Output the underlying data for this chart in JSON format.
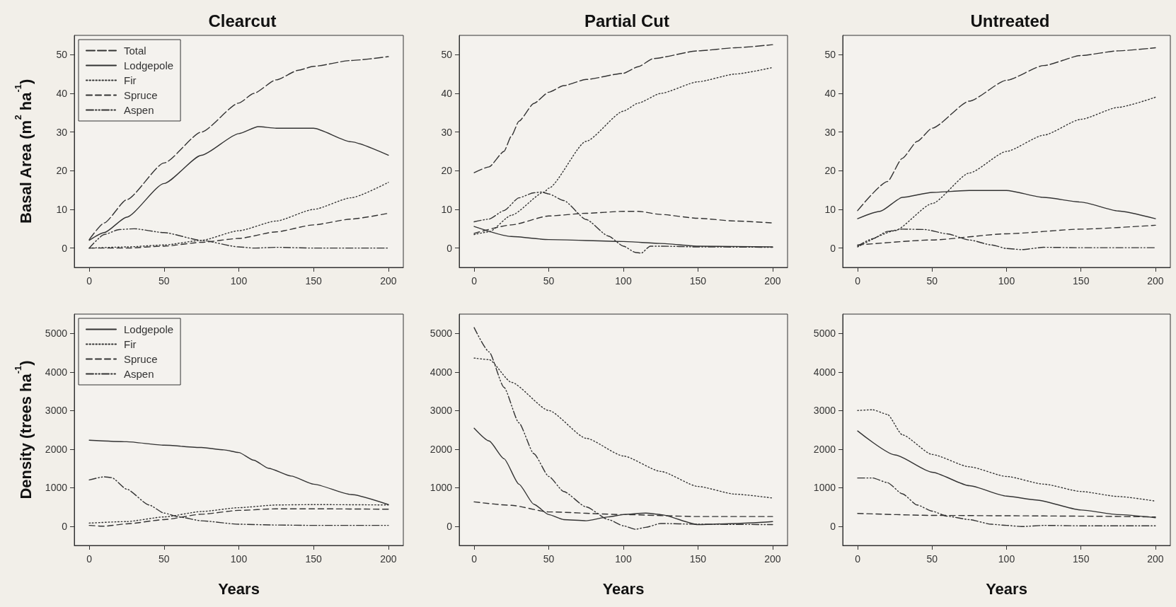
{
  "chart_data": [
    {
      "type": "line",
      "title": "Clearcut",
      "ylabel": "Basal Area (m$^{2}$ ha$^{-1}$)",
      "xlim": [
        -10,
        210
      ],
      "xticks": [
        0,
        50,
        100,
        150,
        200
      ],
      "ylim": [
        -5,
        55
      ],
      "yticks": [
        0,
        10,
        20,
        30,
        40,
        50
      ],
      "grid": false,
      "legend": "top left",
      "marker": "none",
      "series": [
        {
          "name": "Total",
          "color": "#333333",
          "line_style": "longdash",
          "x": [
            0,
            10,
            25,
            50,
            75,
            100,
            110,
            125,
            140,
            150,
            175,
            200
          ],
          "values": [
            2.2,
            6.5,
            12.5,
            22,
            30,
            37.5,
            40,
            43.5,
            46,
            47,
            48.5,
            49.5
          ]
        },
        {
          "name": "Lodgepole",
          "color": "#333333",
          "line_style": "solid",
          "x": [
            0,
            10,
            25,
            50,
            75,
            100,
            113,
            125,
            150,
            175,
            200
          ],
          "values": [
            2,
            4,
            8,
            16.7,
            24,
            29.6,
            31.4,
            31,
            31,
            27.5,
            24
          ]
        },
        {
          "name": "Fir",
          "color": "#333333",
          "line_style": "dotted",
          "x": [
            0,
            25,
            50,
            75,
            100,
            125,
            150,
            175,
            200
          ],
          "values": [
            0,
            0.3,
            0.8,
            2,
            4.5,
            7,
            10,
            13,
            17
          ]
        },
        {
          "name": "Spruce",
          "color": "#333333",
          "line_style": "dashed",
          "x": [
            0,
            25,
            50,
            75,
            100,
            125,
            150,
            175,
            200
          ],
          "values": [
            0,
            0,
            0.5,
            1.5,
            2.5,
            4.2,
            6,
            7.5,
            9
          ]
        },
        {
          "name": "Aspen",
          "color": "#333333",
          "line_style": "dashdotdot",
          "x": [
            0,
            10,
            20,
            30,
            50,
            75,
            100,
            110,
            125,
            150,
            200
          ],
          "values": [
            0,
            3.5,
            4.8,
            5,
            4,
            2,
            0.3,
            0,
            0.2,
            0,
            0
          ]
        }
      ]
    },
    {
      "type": "line",
      "title": "Partial Cut",
      "xlim": [
        -10,
        210
      ],
      "xticks": [
        0,
        50,
        100,
        150,
        200
      ],
      "ylim": [
        -5,
        55
      ],
      "yticks": [
        0,
        10,
        20,
        30,
        40,
        50
      ],
      "grid": false,
      "legend": false,
      "marker": "none",
      "series": [
        {
          "color": "#333333",
          "line_style": "longdash",
          "x": [
            0,
            10,
            20,
            25,
            30,
            40,
            50,
            60,
            75,
            100,
            110,
            120,
            150,
            175,
            200
          ],
          "values": [
            19.5,
            21,
            25,
            29,
            32.8,
            37.4,
            40.3,
            42,
            43.6,
            45.2,
            46.9,
            49,
            51,
            51.8,
            52.6
          ]
        },
        {
          "color": "#333333",
          "line_style": "solid",
          "x": [
            0,
            25,
            50,
            100,
            125,
            150,
            200
          ],
          "values": [
            5.6,
            3,
            2.2,
            1.7,
            1.2,
            0.5,
            0.3
          ]
        },
        {
          "color": "#333333",
          "line_style": "dotted",
          "x": [
            0,
            10,
            25,
            47,
            50,
            75,
            100,
            110,
            125,
            150,
            175,
            200
          ],
          "values": [
            3.5,
            4.2,
            8.5,
            14.5,
            15.5,
            27.6,
            35.4,
            37.5,
            40,
            43,
            45,
            46.7
          ]
        },
        {
          "color": "#333333",
          "line_style": "dashed",
          "x": [
            0,
            25,
            50,
            75,
            100,
            110,
            125,
            150,
            175,
            200
          ],
          "values": [
            3.8,
            6,
            8.3,
            9,
            9.5,
            9.5,
            8.7,
            7.7,
            7,
            6.5
          ]
        },
        {
          "color": "#333333",
          "line_style": "dashdotdot",
          "x": [
            0,
            10,
            20,
            30,
            40,
            45,
            50,
            60,
            75,
            90,
            100,
            108,
            112,
            118,
            125,
            150,
            200
          ],
          "values": [
            6.8,
            7.5,
            9.7,
            13,
            14.3,
            14.5,
            14,
            12.3,
            7.4,
            3.1,
            0.5,
            -1.1,
            -1.3,
            0.5,
            0.5,
            0.3,
            0.2
          ]
        }
      ]
    },
    {
      "type": "line",
      "title": "Untreated",
      "xlim": [
        -10,
        210
      ],
      "xticks": [
        0,
        50,
        100,
        150,
        200
      ],
      "ylim": [
        -5,
        55
      ],
      "yticks": [
        0,
        10,
        20,
        30,
        40,
        50
      ],
      "grid": false,
      "legend": false,
      "marker": "none",
      "series": [
        {
          "color": "#333333",
          "line_style": "longdash",
          "x": [
            0,
            20,
            30,
            40,
            50,
            75,
            100,
            125,
            150,
            175,
            200
          ],
          "values": [
            9.7,
            17.2,
            23.2,
            27.6,
            31,
            38,
            43.4,
            47.2,
            49.8,
            51,
            51.8
          ]
        },
        {
          "color": "#333333",
          "line_style": "solid",
          "x": [
            0,
            15,
            30,
            50,
            75,
            100,
            125,
            150,
            175,
            200
          ],
          "values": [
            7.6,
            9.5,
            13.1,
            14.4,
            14.9,
            14.9,
            13.1,
            11.9,
            9.6,
            7.6
          ]
        },
        {
          "color": "#333333",
          "line_style": "dotted",
          "x": [
            0,
            25,
            50,
            75,
            100,
            125,
            150,
            175,
            200
          ],
          "values": [
            0.3,
            4.5,
            11.5,
            19.4,
            25,
            29.2,
            33.3,
            36.4,
            39
          ]
        },
        {
          "color": "#333333",
          "line_style": "dashed",
          "x": [
            0,
            50,
            100,
            150,
            200
          ],
          "values": [
            0.8,
            2.1,
            3.7,
            4.9,
            5.9
          ]
        },
        {
          "color": "#333333",
          "line_style": "dashdotdot",
          "x": [
            0,
            10,
            20,
            30,
            45,
            60,
            75,
            90,
            100,
            110,
            125,
            150,
            200
          ],
          "values": [
            0.5,
            2.4,
            4.3,
            4.9,
            4.8,
            3.7,
            2.1,
            0.8,
            -0.1,
            -0.4,
            0.2,
            0.1,
            0.1
          ]
        }
      ]
    },
    {
      "type": "line",
      "xlabel": "Years",
      "ylabel": "Density (trees ha$^{-1}$)",
      "xlim": [
        -10,
        210
      ],
      "xticks": [
        0,
        50,
        100,
        150,
        200
      ],
      "ylim": [
        -500,
        5500
      ],
      "yticks": [
        0,
        1000,
        2000,
        3000,
        4000,
        5000
      ],
      "grid": false,
      "legend": "top left",
      "marker": "none",
      "series": [
        {
          "name": "Lodgepole",
          "color": "#333333",
          "line_style": "solid",
          "x": [
            0,
            25,
            50,
            75,
            90,
            100,
            110,
            120,
            135,
            150,
            175,
            200
          ],
          "values": [
            2230,
            2190,
            2100,
            2040,
            1980,
            1910,
            1710,
            1500,
            1300,
            1090,
            820,
            560
          ]
        },
        {
          "name": "Fir",
          "color": "#333333",
          "line_style": "dotted",
          "x": [
            0,
            25,
            50,
            75,
            100,
            125,
            150,
            200
          ],
          "values": [
            80,
            120,
            240,
            380,
            480,
            550,
            560,
            550
          ]
        },
        {
          "name": "Spruce",
          "color": "#333333",
          "line_style": "dashed",
          "x": [
            0,
            10,
            25,
            50,
            75,
            100,
            125,
            150,
            200
          ],
          "values": [
            20,
            0,
            60,
            170,
            310,
            410,
            450,
            450,
            440
          ]
        },
        {
          "name": "Aspen",
          "color": "#333333",
          "line_style": "dashdotdot",
          "x": [
            0,
            10,
            15,
            25,
            40,
            50,
            60,
            75,
            100,
            125,
            150,
            200
          ],
          "values": [
            1200,
            1280,
            1260,
            960,
            550,
            340,
            240,
            140,
            50,
            30,
            20,
            20
          ]
        }
      ]
    },
    {
      "type": "line",
      "xlabel": "Years",
      "xlim": [
        -10,
        210
      ],
      "xticks": [
        0,
        50,
        100,
        150,
        200
      ],
      "ylim": [
        -500,
        5500
      ],
      "yticks": [
        0,
        1000,
        2000,
        3000,
        4000,
        5000
      ],
      "grid": false,
      "legend": false,
      "marker": "none",
      "series": [
        {
          "color": "#333333",
          "line_style": "solid",
          "x": [
            0,
            10,
            20,
            30,
            40,
            50,
            60,
            75,
            90,
            100,
            115,
            125,
            150,
            175,
            200
          ],
          "values": [
            2540,
            2210,
            1750,
            1090,
            570,
            300,
            170,
            140,
            240,
            300,
            340,
            300,
            40,
            70,
            120
          ]
        },
        {
          "color": "#333333",
          "line_style": "dotted",
          "x": [
            0,
            10,
            25,
            50,
            75,
            100,
            125,
            150,
            175,
            200
          ],
          "values": [
            4360,
            4320,
            3730,
            3000,
            2280,
            1820,
            1420,
            1030,
            830,
            730
          ]
        },
        {
          "color": "#333333",
          "line_style": "dashed",
          "x": [
            0,
            25,
            50,
            100,
            150,
            200
          ],
          "values": [
            630,
            540,
            370,
            300,
            250,
            250
          ]
        },
        {
          "color": "#333333",
          "line_style": "dashdotdot",
          "x": [
            0,
            10,
            20,
            30,
            40,
            50,
            60,
            75,
            90,
            100,
            108,
            115,
            125,
            150,
            200
          ],
          "values": [
            5150,
            4520,
            3600,
            2680,
            1880,
            1290,
            900,
            500,
            170,
            10,
            -80,
            -30,
            70,
            50,
            40
          ]
        }
      ]
    },
    {
      "type": "line",
      "xlabel": "Years",
      "xlim": [
        -10,
        210
      ],
      "xticks": [
        0,
        50,
        100,
        150,
        200
      ],
      "ylim": [
        -500,
        5500
      ],
      "yticks": [
        0,
        1000,
        2000,
        3000,
        4000,
        5000
      ],
      "grid": false,
      "legend": false,
      "marker": "none",
      "series": [
        {
          "color": "#333333",
          "line_style": "solid",
          "x": [
            0,
            25,
            50,
            75,
            100,
            120,
            150,
            175,
            200
          ],
          "values": [
            2470,
            1850,
            1400,
            1050,
            780,
            680,
            420,
            300,
            220
          ]
        },
        {
          "color": "#333333",
          "line_style": "dotted",
          "x": [
            0,
            10,
            20,
            30,
            50,
            75,
            100,
            125,
            150,
            175,
            200
          ],
          "values": [
            3000,
            3020,
            2900,
            2370,
            1860,
            1540,
            1290,
            1090,
            900,
            770,
            650
          ]
        },
        {
          "color": "#333333",
          "line_style": "dashed",
          "x": [
            0,
            50,
            100,
            150,
            200
          ],
          "values": [
            330,
            280,
            270,
            260,
            240
          ]
        },
        {
          "color": "#333333",
          "line_style": "dashdotdot",
          "x": [
            0,
            10,
            20,
            30,
            40,
            50,
            60,
            75,
            90,
            100,
            110,
            125,
            150,
            200
          ],
          "values": [
            1250,
            1250,
            1130,
            840,
            550,
            390,
            260,
            170,
            50,
            20,
            -10,
            20,
            10,
            10
          ]
        }
      ]
    }
  ]
}
